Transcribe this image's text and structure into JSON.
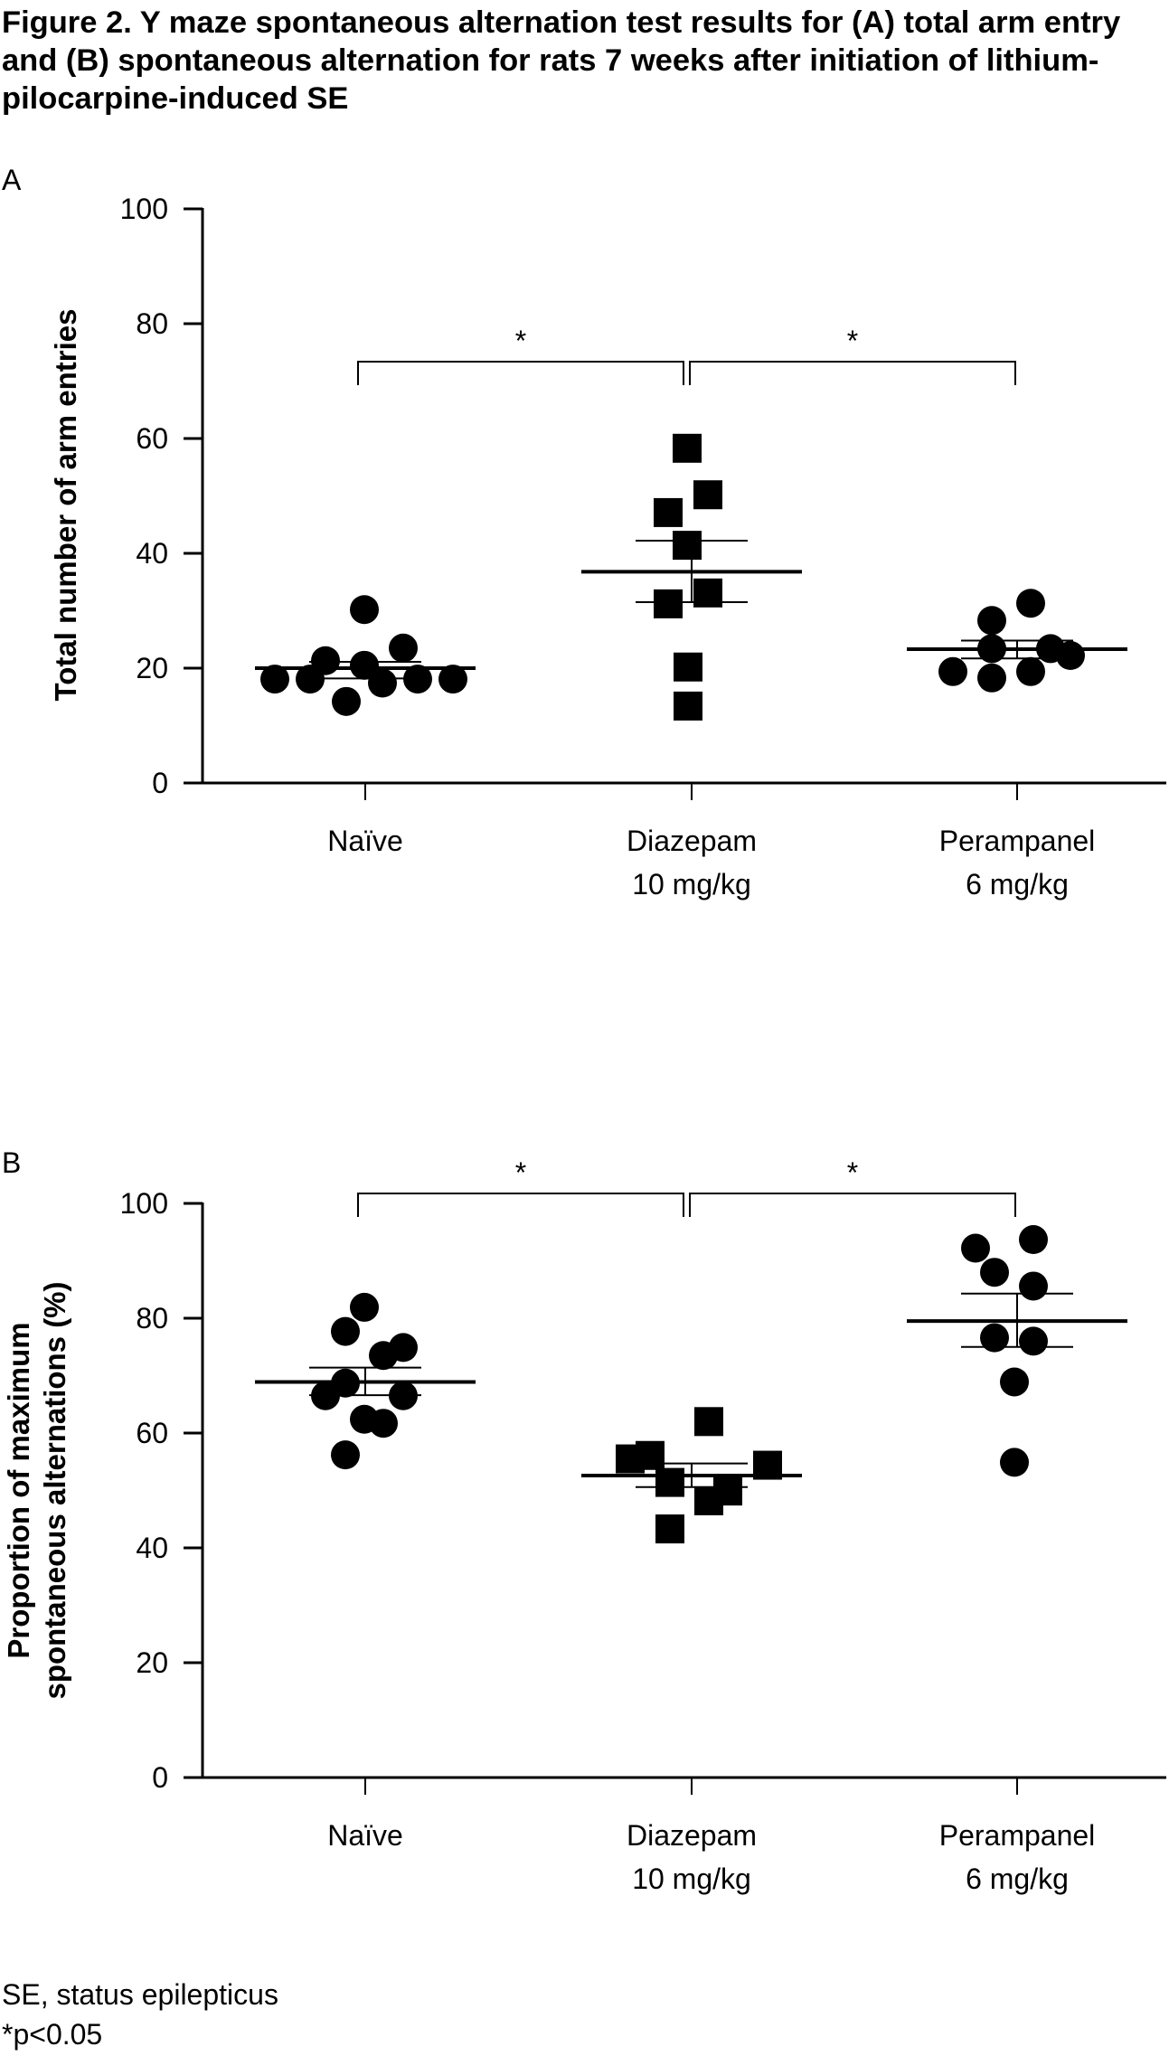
{
  "figure": {
    "title": "Figure 2. Y maze spontaneous alternation test results for (A) total arm entry and (B) spontaneous alternation for rats 7 weeks after initiation of lithium-pilocarpine-induced SE",
    "footnotes": [
      "SE, status epilepticus",
      "*p<0.05"
    ]
  },
  "chart_data": [
    {
      "panel": "A",
      "type": "scatter",
      "title": "",
      "xlabel": "",
      "ylabel": "Total number of arm entries",
      "ylim": [
        0,
        100
      ],
      "yticks": [
        0,
        20,
        40,
        60,
        80,
        100
      ],
      "grid": false,
      "categories": [
        {
          "label": "Naïve",
          "sublabel": ""
        },
        {
          "label": "Diazepam",
          "sublabel": "10 mg/kg"
        },
        {
          "label": "Perampanel",
          "sublabel": "6 mg/kg"
        }
      ],
      "series": [
        {
          "name": "Naïve",
          "marker": "circle",
          "values": [
            18.1,
            18.1,
            21.3,
            14.2,
            20.5,
            30.2,
            17.4,
            23.5,
            18.1,
            18.1
          ],
          "mean": 20.0,
          "sem": [
            18.2,
            21.1
          ]
        },
        {
          "name": "Diazepam 10 mg/kg",
          "marker": "square",
          "values": [
            58.3,
            50.2,
            47.1,
            41.4,
            33.1,
            31.2,
            20.2,
            13.4
          ],
          "mean": 36.8,
          "sem": [
            31.5,
            42.2
          ]
        },
        {
          "name": "Perampanel 6 mg/kg",
          "marker": "circle",
          "values": [
            31.3,
            28.3,
            23.4,
            23.4,
            22.2,
            19.4,
            18.3,
            19.4
          ],
          "mean": 23.3,
          "sem": [
            21.7,
            24.8
          ]
        }
      ],
      "significance": [
        {
          "from": 0,
          "to": 1,
          "label": "*"
        },
        {
          "from": 1,
          "to": 2,
          "label": "*"
        }
      ]
    },
    {
      "panel": "B",
      "type": "scatter",
      "title": "",
      "xlabel": "",
      "ylabel": [
        "Proportion of maximum",
        "spontaneous alternations (%)"
      ],
      "ylim": [
        0,
        100
      ],
      "yticks": [
        0,
        20,
        40,
        60,
        80,
        100
      ],
      "grid": false,
      "categories": [
        {
          "label": "Naïve",
          "sublabel": ""
        },
        {
          "label": "Diazepam",
          "sublabel": "10 mg/kg"
        },
        {
          "label": "Perampanel",
          "sublabel": "6 mg/kg"
        }
      ],
      "series": [
        {
          "name": "Naïve",
          "marker": "circle",
          "values": [
            81.9,
            77.7,
            74.9,
            73.5,
            68.7,
            66.5,
            66.5,
            62.4,
            61.7,
            56.2
          ],
          "mean": 68.9,
          "sem": [
            66.6,
            71.4
          ]
        },
        {
          "name": "Diazepam 10 mg/kg",
          "marker": "square",
          "values": [
            62.0,
            55.5,
            56.1,
            54.4,
            51.4,
            49.9,
            48.2,
            43.3
          ],
          "mean": 52.6,
          "sem": [
            50.6,
            54.7
          ]
        },
        {
          "name": "Perampanel 6 mg/kg",
          "marker": "circle",
          "values": [
            93.7,
            92.2,
            88.0,
            85.6,
            76.6,
            76.0,
            68.9,
            54.9
          ],
          "mean": 79.5,
          "sem": [
            75.0,
            84.3
          ]
        }
      ],
      "significance": [
        {
          "from": 0,
          "to": 1,
          "label": "*"
        },
        {
          "from": 1,
          "to": 2,
          "label": "*"
        }
      ]
    }
  ]
}
